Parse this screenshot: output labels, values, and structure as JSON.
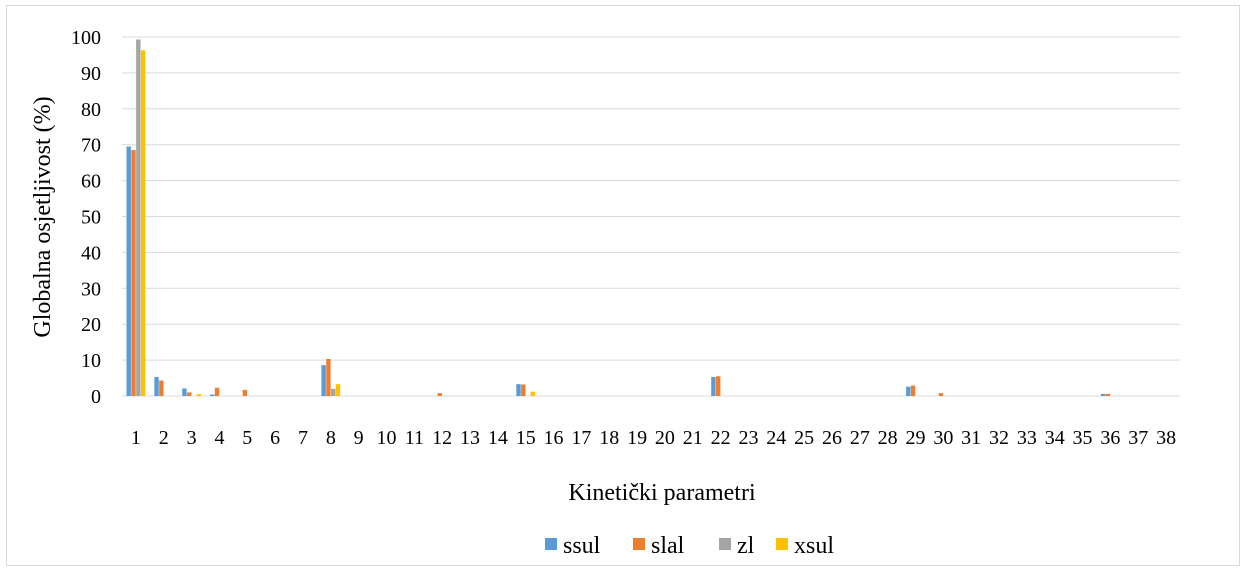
{
  "chart_data": {
    "type": "bar",
    "title": "",
    "xlabel": "Kinetički parametri",
    "ylabel": "Globalna osjetljivost (%)",
    "ylim": [
      0,
      100
    ],
    "yticks": [
      0,
      10,
      20,
      30,
      40,
      50,
      60,
      70,
      80,
      90,
      100
    ],
    "grid": true,
    "legend_position": "bottom",
    "categories": [
      "1",
      "2",
      "3",
      "4",
      "5",
      "6",
      "7",
      "8",
      "9",
      "10",
      "11",
      "12",
      "13",
      "14",
      "15",
      "16",
      "17",
      "18",
      "19",
      "20",
      "21",
      "22",
      "23",
      "24",
      "25",
      "26",
      "27",
      "28",
      "29",
      "30",
      "31",
      "32",
      "33",
      "34",
      "35",
      "36",
      "37",
      "38"
    ],
    "series": [
      {
        "name": "ssul",
        "color": "#5B9BD5",
        "values": [
          69.5,
          5.3,
          2.1,
          0.4,
          0,
          0,
          0,
          8.6,
          0,
          0,
          0,
          0,
          0,
          0,
          3.3,
          0,
          0,
          0,
          0,
          0,
          0,
          5.3,
          0,
          0,
          0,
          0,
          0,
          0,
          2.6,
          0,
          0,
          0,
          0,
          0,
          0,
          0.6,
          0,
          0
        ]
      },
      {
        "name": "slal",
        "color": "#ED7D31",
        "values": [
          68.5,
          4.3,
          1.0,
          2.3,
          1.7,
          0,
          0,
          10.3,
          0,
          0,
          0,
          0.8,
          0,
          0,
          3.2,
          0,
          0,
          0,
          0,
          0,
          0,
          5.5,
          0,
          0,
          0,
          0,
          0,
          0,
          2.9,
          0.8,
          0,
          0,
          0,
          0,
          0,
          0.6,
          0,
          0
        ]
      },
      {
        "name": "zl",
        "color": "#A5A5A5",
        "values": [
          99.3,
          0,
          0,
          0,
          0,
          0,
          0,
          2.0,
          0,
          0,
          0,
          0,
          0,
          0,
          0,
          0,
          0,
          0,
          0,
          0,
          0,
          0,
          0,
          0,
          0,
          0,
          0,
          0,
          0,
          0,
          0,
          0,
          0,
          0,
          0,
          0,
          0,
          0
        ]
      },
      {
        "name": "xsul",
        "color": "#FFC000",
        "values": [
          96.3,
          0,
          0.5,
          0,
          0,
          0,
          0,
          3.3,
          0,
          0,
          0,
          0,
          0,
          0,
          1.2,
          0,
          0,
          0,
          0,
          0,
          0,
          0,
          0,
          0,
          0,
          0,
          0,
          0,
          0,
          0,
          0,
          0,
          0,
          0,
          0,
          0,
          0,
          0
        ]
      }
    ]
  }
}
